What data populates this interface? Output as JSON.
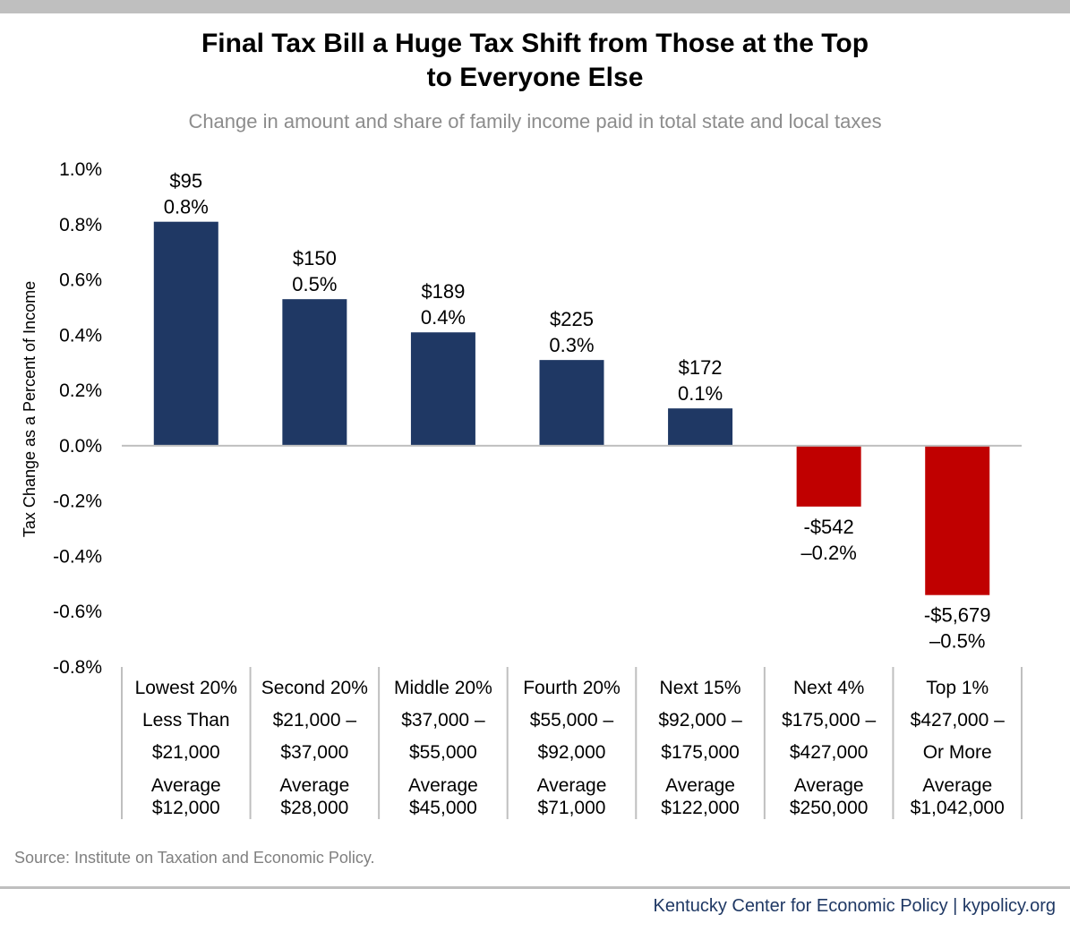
{
  "title_line1": "Final Tax Bill a Huge Tax Shift from Those at the Top",
  "title_line2": "to Everyone Else",
  "subtitle": "Change in amount and share of family income paid in total state and local taxes",
  "source": "Source: Institute on Taxation and Economic Policy.",
  "credit": "Kentucky Center for Economic Policy | kypolicy.org",
  "colors": {
    "positive": "#1f3864",
    "negative": "#c00000",
    "axis": "#bfbfbf"
  },
  "chart_data": {
    "type": "bar",
    "ylabel": "Tax Change as a Percent of Income",
    "ylim": [
      -0.8,
      1.0
    ],
    "yticks": [
      "1.0%",
      "0.8%",
      "0.6%",
      "0.4%",
      "0.2%",
      "0.0%",
      "-0.2%",
      "-0.4%",
      "-0.6%",
      "-0.8%"
    ],
    "ytick_values": [
      1.0,
      0.8,
      0.6,
      0.4,
      0.2,
      0.0,
      -0.2,
      -0.4,
      -0.6,
      -0.8
    ],
    "grid": false,
    "categories": [
      [
        "Lowest 20%",
        "Less Than",
        "$21,000",
        "Average",
        "$12,000"
      ],
      [
        "Second 20%",
        "$21,000 –",
        "$37,000",
        "Average",
        "$28,000"
      ],
      [
        "Middle 20%",
        "$37,000 –",
        "$55,000",
        "Average",
        "$45,000"
      ],
      [
        "Fourth 20%",
        "$55,000 –",
        "$92,000",
        "Average",
        "$71,000"
      ],
      [
        "Next 15%",
        "$92,000 –",
        "$175,000",
        "Average",
        "$122,000"
      ],
      [
        "Next 4%",
        "$175,000 –",
        "$427,000",
        "Average",
        "$250,000"
      ],
      [
        "Top 1%",
        "$427,000 –",
        "Or More",
        "Average",
        "$1,042,000"
      ]
    ],
    "values": [
      0.81,
      0.53,
      0.41,
      0.31,
      0.135,
      -0.22,
      -0.54
    ],
    "labels": [
      [
        "$95",
        "0.8%"
      ],
      [
        "$150",
        "0.5%"
      ],
      [
        "$189",
        "0.4%"
      ],
      [
        "$225",
        "0.3%"
      ],
      [
        "$172",
        "0.1%"
      ],
      [
        "-$542",
        "–0.2%"
      ],
      [
        "-$5,679",
        "–0.5%"
      ]
    ]
  }
}
